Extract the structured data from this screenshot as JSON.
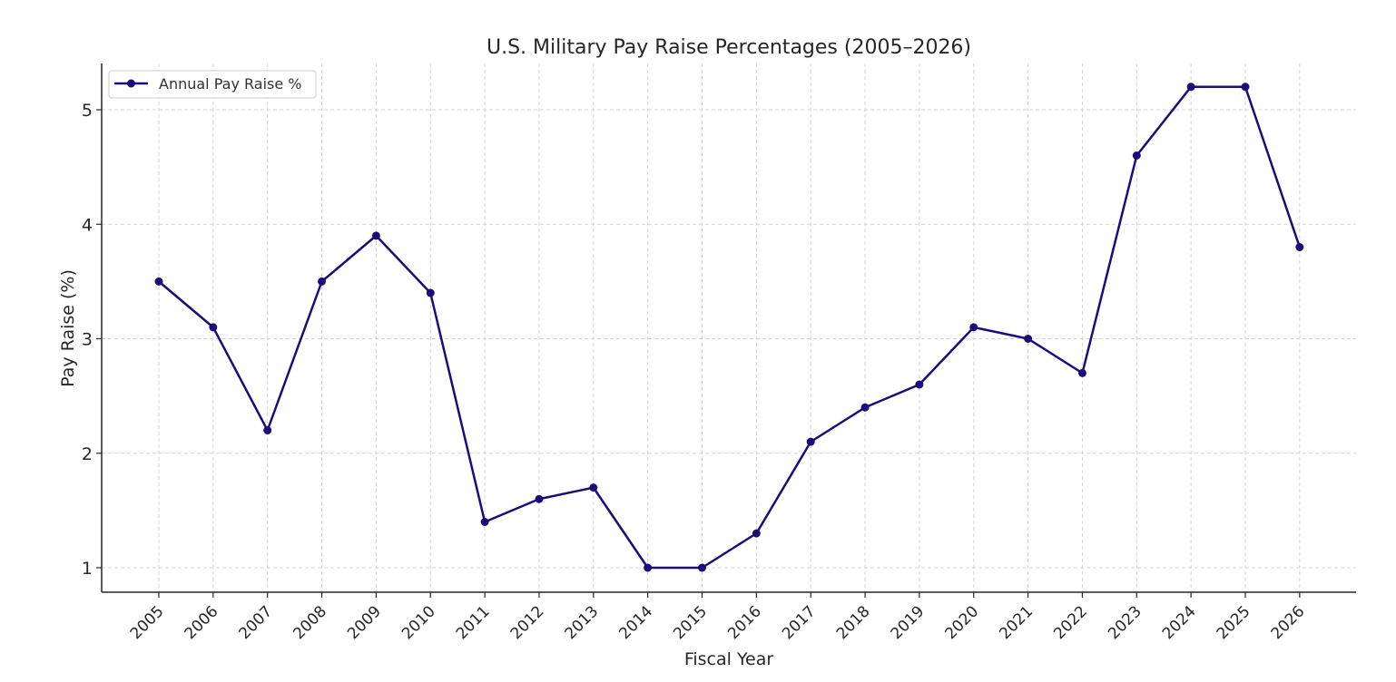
{
  "chart_data": {
    "type": "line",
    "title": "U.S. Military Pay Raise Percentages (2005–2026)",
    "xlabel": "Fiscal Year",
    "ylabel": "Pay Raise (%)",
    "x": [
      "2005",
      "2006",
      "2007",
      "2008",
      "2009",
      "2010",
      "2011",
      "2012",
      "2013",
      "2014",
      "2015",
      "2016",
      "2017",
      "2018",
      "2019",
      "2020",
      "2021",
      "2022",
      "2023",
      "2024",
      "2025",
      "2026"
    ],
    "series": [
      {
        "name": "Annual Pay Raise %",
        "values": [
          3.5,
          3.1,
          2.2,
          3.5,
          3.9,
          3.4,
          1.4,
          1.6,
          1.7,
          1.0,
          1.0,
          1.3,
          2.1,
          2.4,
          2.6,
          3.1,
          3.0,
          2.7,
          4.6,
          5.2,
          5.2,
          3.8
        ]
      }
    ],
    "yticks": [
      1,
      2,
      3,
      4,
      5
    ],
    "ylim": [
      0.79,
      5.4
    ],
    "grid": true,
    "legend_position": "top-left",
    "colors": {
      "series": "#1a0d7a",
      "grid": "#d4d4d4",
      "axis": "#262626",
      "text": "#262626"
    }
  }
}
